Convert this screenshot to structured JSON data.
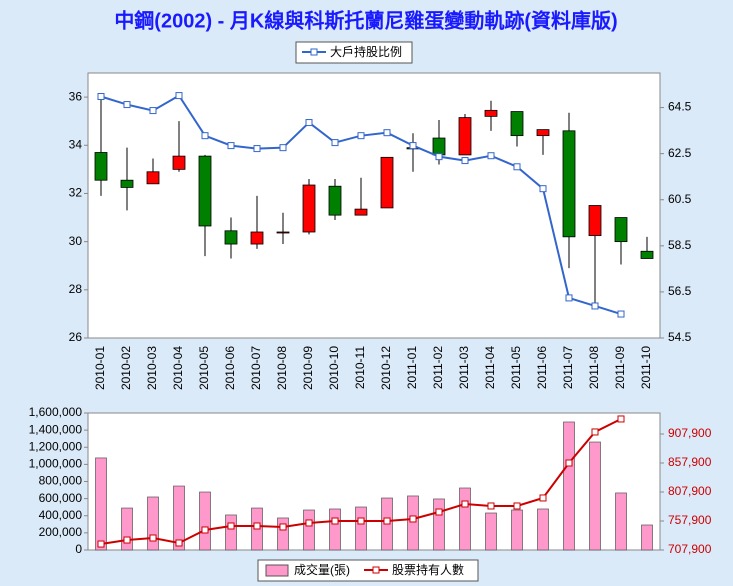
{
  "chart_data": [
    {
      "type": "candlestick",
      "title": "中鋼(2002) - 月K線與科斯托蘭尼雞蛋變動軌跡(資料庫版)",
      "categories": [
        "2010-01",
        "2010-02",
        "2010-03",
        "2010-04",
        "2010-05",
        "2010-06",
        "2010-07",
        "2010-08",
        "2010-09",
        "2010-10",
        "2010-11",
        "2010-12",
        "2011-01",
        "2011-02",
        "2011-03",
        "2011-04",
        "2011-05",
        "2011-06",
        "2011-07",
        "2011-08",
        "2011-09",
        "2011-10"
      ],
      "open": [
        33.7,
        32.55,
        32.4,
        33.0,
        33.55,
        30.45,
        29.9,
        30.4,
        30.4,
        32.3,
        31.1,
        31.4,
        33.9,
        34.3,
        33.6,
        35.2,
        35.4,
        34.4,
        34.6,
        30.25,
        31.0,
        29.6
      ],
      "high": [
        36.0,
        33.9,
        33.45,
        35.0,
        33.6,
        31.0,
        31.9,
        31.2,
        32.6,
        32.6,
        32.65,
        33.5,
        34.5,
        35.05,
        35.3,
        35.85,
        35.4,
        34.65,
        35.35,
        31.5,
        31.0,
        30.2
      ],
      "low": [
        31.9,
        31.3,
        32.4,
        32.9,
        29.4,
        29.3,
        29.7,
        29.9,
        30.3,
        30.9,
        31.1,
        31.4,
        32.9,
        33.2,
        33.6,
        34.6,
        33.95,
        33.6,
        28.9,
        27.4,
        29.05,
        29.3
      ],
      "close": [
        32.55,
        32.25,
        32.9,
        33.55,
        30.65,
        29.9,
        30.4,
        30.4,
        32.35,
        31.1,
        31.35,
        33.5,
        33.85,
        33.6,
        35.15,
        35.45,
        34.4,
        34.65,
        30.2,
        31.5,
        30.0,
        29.3
      ],
      "up_color": "#ff0000",
      "down_color": "#008000",
      "ylim": [
        26,
        37
      ],
      "yticks": [
        26,
        28,
        30,
        32,
        34,
        36
      ],
      "y2lim": [
        54.5,
        66
      ],
      "y2ticks": [
        54.5,
        56.5,
        58.5,
        60.5,
        62.5,
        64.5
      ],
      "grid": false,
      "series": [
        {
          "name": "大戶持股比例",
          "color": "#3366cc",
          "axis": "y2",
          "values": [
            64.98,
            64.63,
            64.37,
            65.02,
            63.28,
            62.85,
            62.72,
            62.76,
            63.85,
            62.98,
            63.28,
            63.41,
            62.85,
            62.37,
            62.2,
            62.41,
            61.93,
            60.98,
            56.24,
            55.89,
            55.54,
            null
          ]
        }
      ]
    },
    {
      "type": "bar",
      "ylim": [
        0,
        1600000
      ],
      "yticks": [
        0,
        {
          "value": 200000,
          "label": "200,000"
        },
        {
          "value": 400000,
          "label": "400,000"
        },
        {
          "value": 600000,
          "label": "600,000"
        },
        {
          "value": 800000,
          "label": "800,000"
        },
        {
          "value": 1000000,
          "label": "1,000,000"
        },
        {
          "value": 1200000,
          "label": "1,200,000"
        },
        {
          "value": 1400000,
          "label": "1,400,000"
        },
        {
          "value": 1600000,
          "label": "1,600,000"
        }
      ],
      "y2lim": [
        707900,
        944100
      ],
      "y2ticks": [
        {
          "value": 707900,
          "label": "707,900"
        },
        {
          "value": 757900,
          "label": "757,900"
        },
        {
          "value": 807900,
          "label": "807,900"
        },
        {
          "value": 857900,
          "label": "857,900"
        },
        {
          "value": 907900,
          "label": "907,900"
        }
      ],
      "grid": false,
      "series": [
        {
          "name": "成交量(張)",
          "type": "bar",
          "color": "#ff99cc",
          "values": [
            1075000,
            490000,
            619000,
            747000,
            677000,
            409000,
            490000,
            374000,
            467000,
            479000,
            502000,
            607000,
            631000,
            596000,
            724000,
            432000,
            467000,
            479000,
            1495000,
            1261000,
            666000,
            292000
          ]
        },
        {
          "name": "股票持有人數",
          "type": "line",
          "color": "#cc0000",
          "axis": "y2",
          "values": [
            718200,
            725100,
            728600,
            720000,
            742400,
            749300,
            749300,
            747600,
            754500,
            757900,
            757900,
            757900,
            761400,
            773400,
            787200,
            783800,
            783800,
            797600,
            857900,
            911400,
            933800,
            null
          ]
        }
      ]
    }
  ]
}
